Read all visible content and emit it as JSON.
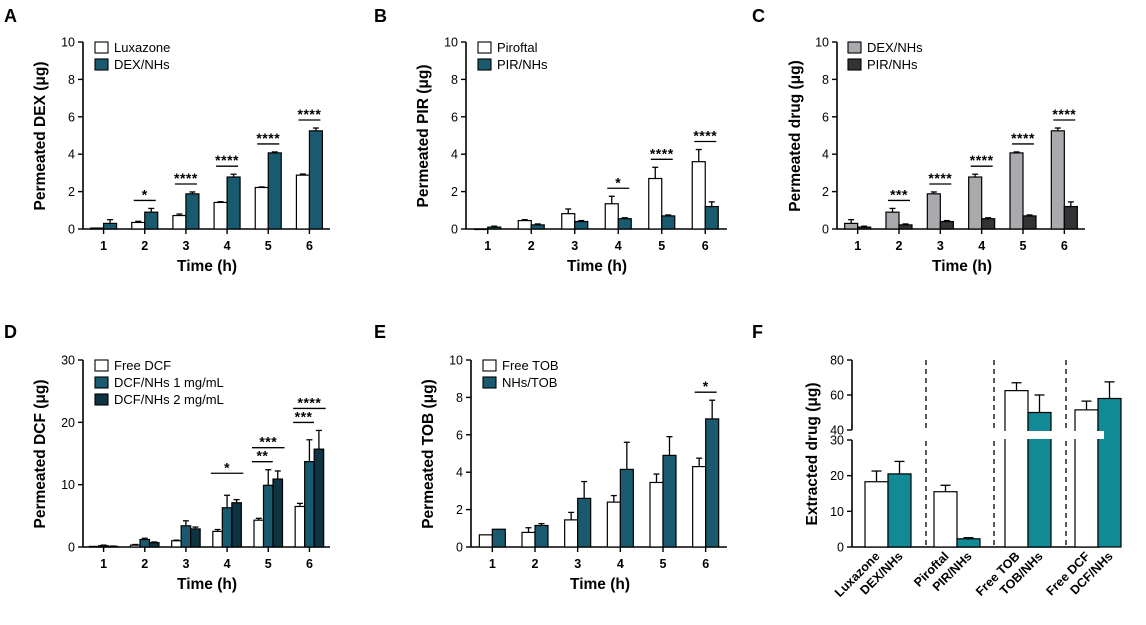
{
  "figure": {
    "panels": [
      "A",
      "B",
      "C",
      "D",
      "E",
      "F"
    ]
  },
  "colors": {
    "white": "#ffffff",
    "teal": "#1a5a6e",
    "gray": "#a9a9ae",
    "dark": "#333333",
    "navy": "#0f3340",
    "cyan": "#128a96"
  },
  "chart_data": [
    {
      "panel": "A",
      "type": "bar",
      "categories": [
        "1",
        "2",
        "3",
        "4",
        "5",
        "6"
      ],
      "series": [
        {
          "name": "Luxazone",
          "color": "white",
          "values": [
            0.05,
            0.35,
            0.72,
            1.42,
            2.22,
            2.88
          ],
          "err": [
            0.0,
            0.06,
            0.08,
            0.04,
            0.03,
            0.06
          ]
        },
        {
          "name": "DEX/NHs",
          "color": "teal",
          "values": [
            0.3,
            0.9,
            1.88,
            2.78,
            4.07,
            5.25
          ],
          "err": [
            0.2,
            0.2,
            0.1,
            0.15,
            0.05,
            0.15
          ]
        }
      ],
      "ylabel": "Permeated DEX (μg)",
      "xlabel": "Time (h)",
      "ylim": [
        0,
        10
      ],
      "yticks": [
        "0",
        "2",
        "4",
        "6",
        "8",
        "10"
      ],
      "legend": "top-left",
      "significance": [
        {
          "cat": 1,
          "text": "*"
        },
        {
          "cat": 2,
          "text": "****"
        },
        {
          "cat": 3,
          "text": "****"
        },
        {
          "cat": 4,
          "text": "****"
        },
        {
          "cat": 5,
          "text": "****"
        }
      ]
    },
    {
      "panel": "B",
      "type": "bar",
      "categories": [
        "1",
        "2",
        "3",
        "4",
        "5",
        "6"
      ],
      "series": [
        {
          "name": "Piroftal",
          "color": "white",
          "values": [
            0.0,
            0.45,
            0.82,
            1.35,
            2.7,
            3.6
          ],
          "err": [
            0.0,
            0.05,
            0.25,
            0.4,
            0.6,
            0.65
          ]
        },
        {
          "name": "PIR/NHs",
          "color": "teal",
          "values": [
            0.1,
            0.22,
            0.4,
            0.55,
            0.7,
            1.2
          ],
          "err": [
            0.05,
            0.05,
            0.05,
            0.05,
            0.05,
            0.25
          ]
        }
      ],
      "ylabel": "Permeated PIR (μg)",
      "xlabel": "Time (h)",
      "ylim": [
        0,
        10
      ],
      "yticks": [
        "0",
        "2",
        "4",
        "6",
        "8",
        "10"
      ],
      "legend": "top-left",
      "significance": [
        {
          "cat": 3,
          "text": "*"
        },
        {
          "cat": 4,
          "text": "****"
        },
        {
          "cat": 5,
          "text": "****"
        }
      ]
    },
    {
      "panel": "C",
      "type": "bar",
      "categories": [
        "1",
        "2",
        "3",
        "4",
        "5",
        "6"
      ],
      "series": [
        {
          "name": "DEX/NHs",
          "color": "gray",
          "values": [
            0.3,
            0.9,
            1.88,
            2.78,
            4.07,
            5.25
          ],
          "err": [
            0.2,
            0.2,
            0.1,
            0.15,
            0.05,
            0.15
          ]
        },
        {
          "name": "PIR/NHs",
          "color": "dark",
          "values": [
            0.1,
            0.22,
            0.4,
            0.55,
            0.7,
            1.2
          ],
          "err": [
            0.05,
            0.05,
            0.05,
            0.05,
            0.05,
            0.25
          ]
        }
      ],
      "ylabel": "Permeated drug (μg)",
      "xlabel": "Time (h)",
      "ylim": [
        0,
        10
      ],
      "yticks": [
        "0",
        "2",
        "4",
        "6",
        "8",
        "10"
      ],
      "legend": "top-left",
      "significance": [
        {
          "cat": 1,
          "text": "***"
        },
        {
          "cat": 2,
          "text": "****"
        },
        {
          "cat": 3,
          "text": "****"
        },
        {
          "cat": 4,
          "text": "****"
        },
        {
          "cat": 5,
          "text": "****"
        }
      ]
    },
    {
      "panel": "D",
      "type": "bar",
      "categories": [
        "1",
        "2",
        "3",
        "4",
        "5",
        "6"
      ],
      "series": [
        {
          "name": "Free DCF",
          "color": "white",
          "values": [
            0.1,
            0.3,
            1.0,
            2.5,
            4.3,
            6.5
          ],
          "err": [
            0.0,
            0.1,
            0.1,
            0.3,
            0.3,
            0.5
          ]
        },
        {
          "name": "DCF/NHs 1 mg/mL",
          "color": "teal",
          "values": [
            0.2,
            1.2,
            3.4,
            6.3,
            9.9,
            13.7
          ],
          "err": [
            0.1,
            0.2,
            0.8,
            2.0,
            2.5,
            3.5
          ]
        },
        {
          "name": "DCF/NHs 2 mg/mL",
          "color": "navy",
          "values": [
            0.1,
            0.7,
            2.9,
            7.1,
            10.9,
            15.7
          ],
          "err": [
            0.05,
            0.1,
            0.3,
            0.5,
            1.3,
            3.0
          ]
        }
      ],
      "ylabel": "Permeated DCF (μg)",
      "xlabel": "Time (h)",
      "ylim": [
        0,
        30
      ],
      "yticks": [
        "0",
        "10",
        "20",
        "30"
      ],
      "legend": "top-left",
      "significance": [
        {
          "cat": 3,
          "text": "*",
          "span": "wide"
        },
        {
          "cat": 4,
          "text": "***",
          "span": "wide"
        },
        {
          "cat": 4,
          "text": "**",
          "span": "narrow"
        },
        {
          "cat": 5,
          "text": "****",
          "span": "wide"
        },
        {
          "cat": 5,
          "text": "***",
          "span": "narrow"
        }
      ]
    },
    {
      "panel": "E",
      "type": "bar",
      "categories": [
        "1",
        "2",
        "3",
        "4",
        "5",
        "6"
      ],
      "series": [
        {
          "name": "Free TOB",
          "color": "white",
          "values": [
            0.65,
            0.78,
            1.45,
            2.4,
            3.45,
            4.3
          ],
          "err": [
            0.0,
            0.25,
            0.4,
            0.35,
            0.45,
            0.45
          ]
        },
        {
          "name": "NHs/TOB",
          "color": "teal",
          "values": [
            0.95,
            1.15,
            2.6,
            4.15,
            4.9,
            6.85
          ],
          "err": [
            0.0,
            0.1,
            0.9,
            1.45,
            1.0,
            1.0
          ]
        }
      ],
      "ylabel": "Permeated TOB (μg)",
      "xlabel": "Time (h)",
      "ylim": [
        0,
        10
      ],
      "yticks": [
        "0",
        "2",
        "4",
        "6",
        "8",
        "10"
      ],
      "legend": "top-left",
      "significance": [
        {
          "cat": 5,
          "text": "*"
        }
      ]
    },
    {
      "panel": "F",
      "type": "bar",
      "categories": [
        "Luxazone",
        "DEX/NHs",
        "Piroftal",
        "PIR/NHs",
        "Free TOB",
        "TOB/NHs",
        "Free DCF",
        "DCF/NHs"
      ],
      "values": [
        18.3,
        20.5,
        15.5,
        2.3,
        62.5,
        50.0,
        51.5,
        58.0
      ],
      "err": [
        3.0,
        3.5,
        1.8,
        0.3,
        4.5,
        10.0,
        5.0,
        9.5
      ],
      "colors": [
        "white",
        "cyan",
        "white",
        "cyan",
        "white",
        "cyan",
        "white",
        "cyan"
      ],
      "ylabel": "Extracted drug (μg)",
      "ylim_lower": [
        0,
        30
      ],
      "yticks_lower": [
        "0",
        "10",
        "20",
        "30"
      ],
      "ylim_upper": [
        40,
        80
      ],
      "yticks_upper": [
        "40",
        "60",
        "80"
      ],
      "axis_break": true
    }
  ]
}
